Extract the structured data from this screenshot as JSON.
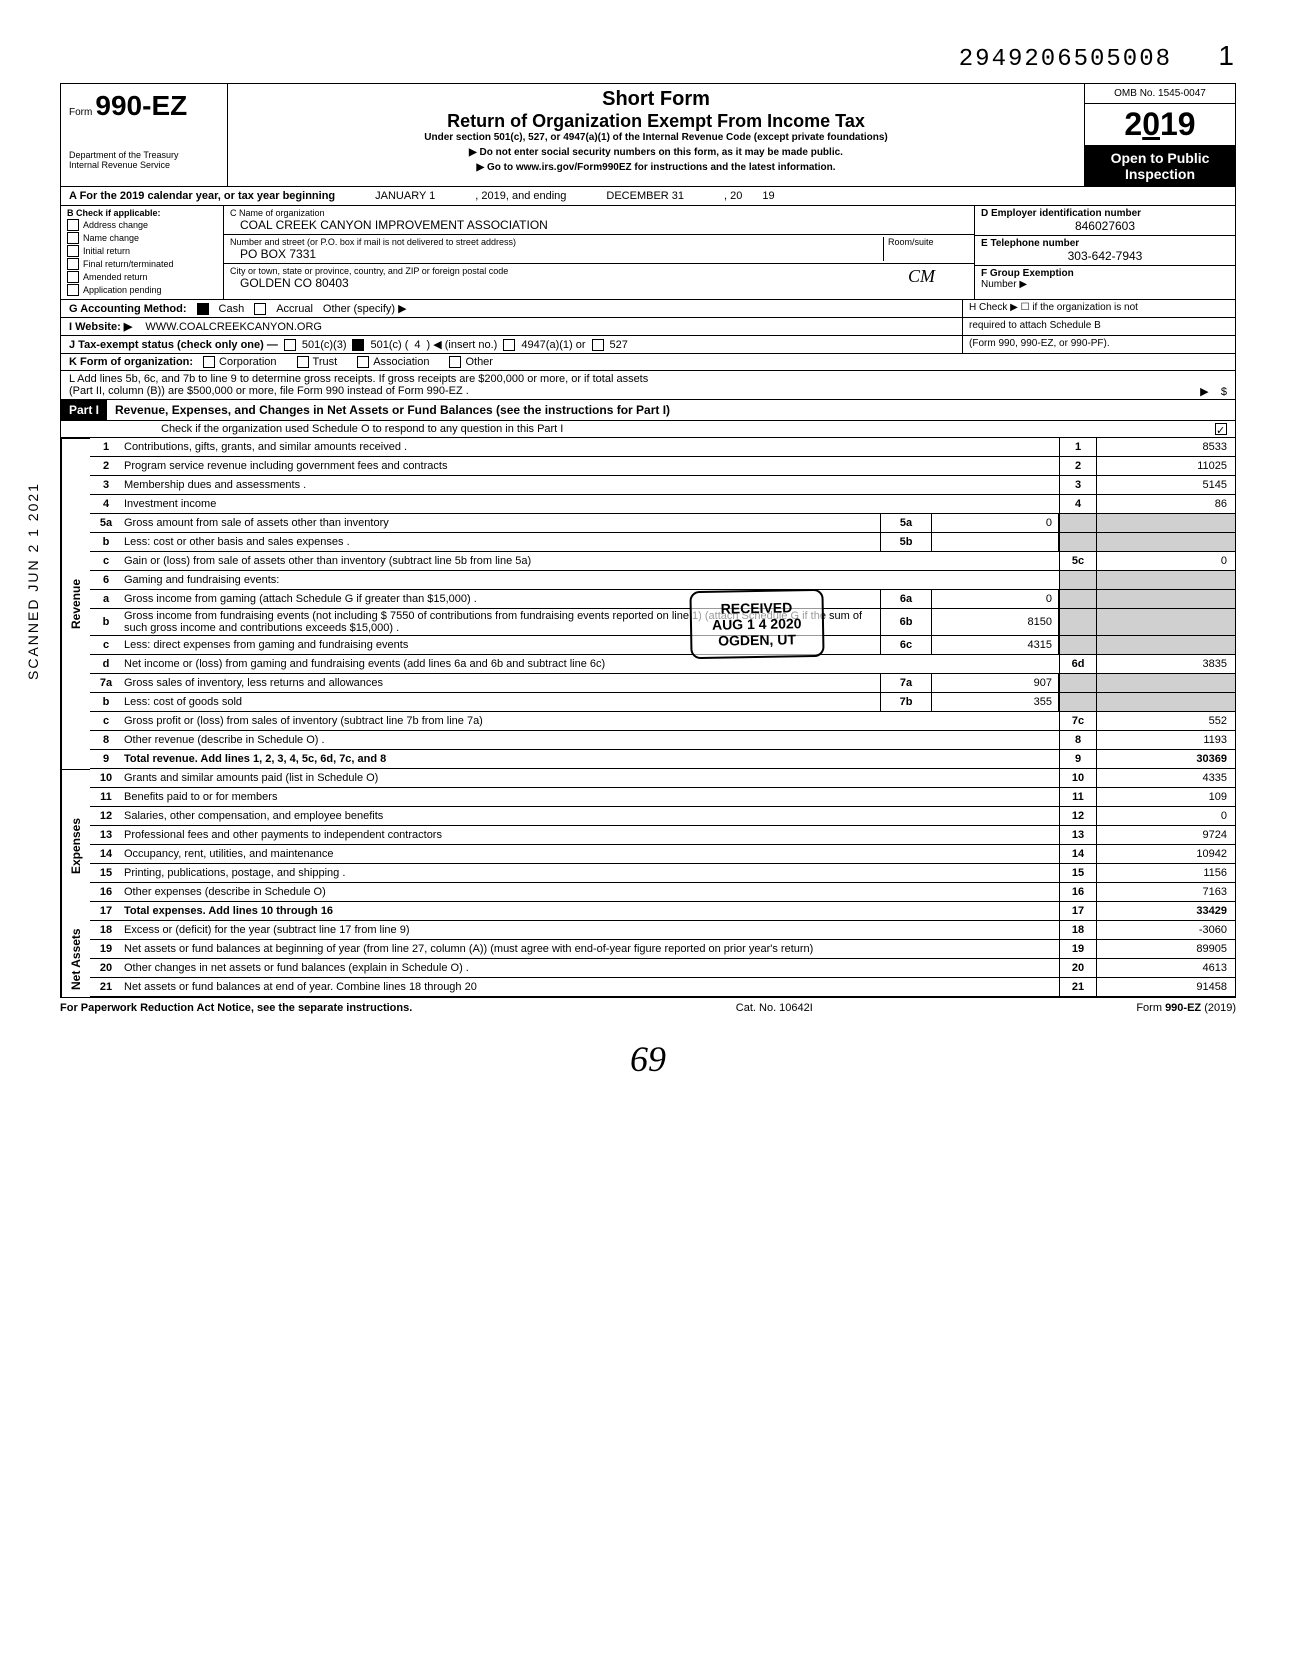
{
  "top": {
    "doc_number": "2949206505008",
    "page": "1",
    "scanned": "SCANNED JUN 2 1 2021"
  },
  "header": {
    "form_prefix": "Form",
    "form_number": "990-EZ",
    "short_form": "Short Form",
    "main_title": "Return of Organization Exempt From Income Tax",
    "subtitle": "Under section 501(c), 527, or 4947(a)(1) of the Internal Revenue Code (except private foundations)",
    "warn1": "▶ Do not enter social security numbers on this form, as it may be made public.",
    "warn2": "▶ Go to www.irs.gov/Form990EZ for instructions and the latest information.",
    "omb": "OMB No. 1545-0047",
    "year": "2019",
    "open1": "Open to Public",
    "open2": "Inspection",
    "dept1": "Department of the Treasury",
    "dept2": "Internal Revenue Service"
  },
  "rowA": {
    "prefix": "A  For the 2019 calendar year, or tax year beginning",
    "begin": "JANUARY 1",
    "mid": ", 2019, and ending",
    "end": "DECEMBER 31",
    "suffix": ", 20",
    "yr": "19"
  },
  "boxB": {
    "title": "B  Check if applicable:",
    "items": [
      "Address change",
      "Name change",
      "Initial return",
      "Final return/terminated",
      "Amended return",
      "Application pending"
    ]
  },
  "org": {
    "c_label": "C  Name of organization",
    "name": "COAL CREEK CANYON IMPROVEMENT ASSOCIATION",
    "addr_label": "Number and street (or P.O. box if mail is not delivered to street address)",
    "room_label": "Room/suite",
    "addr": "PO BOX 7331",
    "city_label": "City or town, state or province, country, and ZIP or foreign postal code",
    "city": "GOLDEN CO 80403"
  },
  "right": {
    "d_label": "D Employer identification number",
    "ein": "846027603",
    "e_label": "E Telephone number",
    "phone": "303-642-7943",
    "f_label": "F Group Exemption",
    "f_label2": "Number ▶"
  },
  "rowG": {
    "label": "G  Accounting Method:",
    "cash": "Cash",
    "accrual": "Accrual",
    "other": "Other (specify) ▶",
    "h_label": "H  Check ▶ ☐ if the organization is not",
    "h_label2": "required to attach Schedule B",
    "h_label3": "(Form 990, 990-EZ, or 990-PF)."
  },
  "rowI": {
    "label": "I  Website: ▶",
    "value": "WWW.COALCREEKCANYON.ORG"
  },
  "rowJ": {
    "label": "J  Tax-exempt status (check only one) —",
    "c3": "501(c)(3)",
    "c": "501(c) (",
    "cnum": "4",
    "cins": ") ◀ (insert no.)",
    "a1": "4947(a)(1) or",
    "527": "527"
  },
  "rowK": {
    "label": "K  Form of organization:",
    "corp": "Corporation",
    "trust": "Trust",
    "assoc": "Association",
    "other": "Other"
  },
  "rowL": {
    "text1": "L  Add lines 5b, 6c, and 7b to line 9 to determine gross receipts. If gross receipts are $200,000 or more, or if total assets",
    "text2": "(Part II, column (B)) are $500,000 or more, file Form 990 instead of Form 990-EZ .",
    "arrow": "▶",
    "dollar": "$"
  },
  "part1": {
    "label": "Part I",
    "title": "Revenue, Expenses, and Changes in Net Assets or Fund Balances (see the instructions for Part I)",
    "check": "Check if the organization used Schedule O to respond to any question in this Part I"
  },
  "stamp": {
    "line1": "RECEIVED",
    "line2": "AUG 1 4 2020",
    "line3": "OGDEN, UT"
  },
  "sections": {
    "revenue": "Revenue",
    "expenses": "Expenses",
    "netassets": "Net Assets"
  },
  "lines": {
    "l1": {
      "n": "1",
      "t": "Contributions, gifts, grants, and similar amounts received .",
      "rn": "1",
      "rv": "8533"
    },
    "l2": {
      "n": "2",
      "t": "Program service revenue including government fees and contracts",
      "rn": "2",
      "rv": "11025"
    },
    "l3": {
      "n": "3",
      "t": "Membership dues and assessments .",
      "rn": "3",
      "rv": "5145"
    },
    "l4": {
      "n": "4",
      "t": "Investment income",
      "rn": "4",
      "rv": "86"
    },
    "l5a": {
      "n": "5a",
      "t": "Gross amount from sale of assets other than inventory",
      "ib": "5a",
      "iv": "0"
    },
    "l5b": {
      "n": "b",
      "t": "Less: cost or other basis and sales expenses .",
      "ib": "5b",
      "iv": ""
    },
    "l5c": {
      "n": "c",
      "t": "Gain or (loss) from sale of assets other than inventory (subtract line 5b from line 5a)",
      "rn": "5c",
      "rv": "0"
    },
    "l6": {
      "n": "6",
      "t": "Gaming and fundraising events:"
    },
    "l6a": {
      "n": "a",
      "t": "Gross income from gaming (attach Schedule G if greater than $15,000) .",
      "ib": "6a",
      "iv": "0"
    },
    "l6b": {
      "n": "b",
      "t": "Gross income from fundraising events (not including  $",
      "contrib": "7550",
      "t2": "of contributions from fundraising events reported on line 1) (attach Schedule G if the sum of such gross income and contributions exceeds $15,000) .",
      "ib": "6b",
      "iv": "8150"
    },
    "l6c": {
      "n": "c",
      "t": "Less: direct expenses from gaming and fundraising events",
      "ib": "6c",
      "iv": "4315"
    },
    "l6d": {
      "n": "d",
      "t": "Net income or (loss) from gaming and fundraising events (add lines 6a and 6b and subtract line 6c)",
      "rn": "6d",
      "rv": "3835"
    },
    "l7a": {
      "n": "7a",
      "t": "Gross sales of inventory, less returns and allowances",
      "ib": "7a",
      "iv": "907"
    },
    "l7b": {
      "n": "b",
      "t": "Less: cost of goods sold",
      "ib": "7b",
      "iv": "355"
    },
    "l7c": {
      "n": "c",
      "t": "Gross profit or (loss) from sales of inventory (subtract line 7b from line 7a)",
      "rn": "7c",
      "rv": "552"
    },
    "l8": {
      "n": "8",
      "t": "Other revenue (describe in Schedule O) .",
      "rn": "8",
      "rv": "1193"
    },
    "l9": {
      "n": "9",
      "t": "Total revenue. Add lines 1, 2, 3, 4, 5c, 6d, 7c, and 8",
      "rn": "9",
      "rv": "30369",
      "bold": true
    },
    "l10": {
      "n": "10",
      "t": "Grants and similar amounts paid (list in Schedule O)",
      "rn": "10",
      "rv": "4335"
    },
    "l11": {
      "n": "11",
      "t": "Benefits paid to or for members",
      "rn": "11",
      "rv": "109"
    },
    "l12": {
      "n": "12",
      "t": "Salaries, other compensation, and employee benefits",
      "rn": "12",
      "rv": "0"
    },
    "l13": {
      "n": "13",
      "t": "Professional fees and other payments to independent contractors",
      "rn": "13",
      "rv": "9724"
    },
    "l14": {
      "n": "14",
      "t": "Occupancy, rent, utilities, and maintenance",
      "rn": "14",
      "rv": "10942"
    },
    "l15": {
      "n": "15",
      "t": "Printing, publications, postage, and shipping .",
      "rn": "15",
      "rv": "1156"
    },
    "l16": {
      "n": "16",
      "t": "Other expenses (describe in Schedule O)",
      "rn": "16",
      "rv": "7163"
    },
    "l17": {
      "n": "17",
      "t": "Total expenses. Add lines 10 through 16",
      "rn": "17",
      "rv": "33429",
      "bold": true
    },
    "l18": {
      "n": "18",
      "t": "Excess or (deficit) for the year (subtract line 17 from line 9)",
      "rn": "18",
      "rv": "-3060"
    },
    "l19": {
      "n": "19",
      "t": "Net assets or fund balances at beginning of year (from line 27, column (A)) (must agree with end-of-year figure reported on prior year's return)",
      "rn": "19",
      "rv": "89905"
    },
    "l20": {
      "n": "20",
      "t": "Other changes in net assets or fund balances (explain in Schedule O) .",
      "rn": "20",
      "rv": "4613"
    },
    "l21": {
      "n": "21",
      "t": "Net assets or fund balances at end of year. Combine lines 18 through 20",
      "rn": "21",
      "rv": "91458"
    }
  },
  "footer": {
    "left": "For Paperwork Reduction Act Notice, see the separate instructions.",
    "mid": "Cat. No. 10642I",
    "right": "Form 990-EZ (2019)"
  },
  "handwrite": "69",
  "initials": "CM"
}
